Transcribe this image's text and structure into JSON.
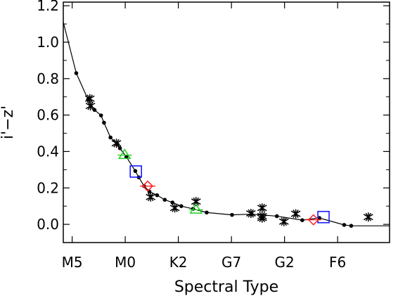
{
  "chart_data": {
    "type": "scatter",
    "xlabel": "Spectral Type",
    "ylabel": "i'−z'",
    "xlim": [
      -0.5,
      54.8
    ],
    "ylim": [
      -0.1,
      1.22
    ],
    "x_ticks": [
      {
        "value": 1,
        "label": "M5"
      },
      {
        "value": 10,
        "label": "M0"
      },
      {
        "value": 19,
        "label": "K2"
      },
      {
        "value": 28,
        "label": "G7"
      },
      {
        "value": 37,
        "label": "G2"
      },
      {
        "value": 46,
        "label": "F6"
      }
    ],
    "y_ticks": [
      0.0,
      0.2,
      0.4,
      0.6,
      0.8,
      1.0,
      1.2
    ],
    "y_tick_labels": [
      "0.0",
      "0.2",
      "0.4",
      "0.6",
      "0.8",
      "1.0",
      "1.2"
    ],
    "series": [
      {
        "marker": "line-dots",
        "color": "#000000",
        "points": [
          [
            -0.5,
            1.11
          ],
          [
            1.7,
            0.83
          ],
          [
            3.7,
            0.685
          ],
          [
            4.8,
            0.628
          ],
          [
            5.9,
            0.598
          ],
          [
            6.4,
            0.558
          ],
          [
            7.5,
            0.477
          ],
          [
            8.7,
            0.438
          ],
          [
            9.1,
            0.418
          ],
          [
            10.2,
            0.37
          ],
          [
            11.7,
            0.293
          ],
          [
            12.3,
            0.258
          ],
          [
            13.2,
            0.21
          ],
          [
            14.1,
            0.18
          ],
          [
            15.4,
            0.16
          ],
          [
            16.7,
            0.135
          ],
          [
            18.0,
            0.12
          ],
          [
            19.5,
            0.1
          ],
          [
            21.5,
            0.085
          ],
          [
            23.8,
            0.065
          ],
          [
            28.1,
            0.052
          ],
          [
            31.4,
            0.056
          ],
          [
            35.7,
            0.045
          ],
          [
            40.0,
            0.023
          ],
          [
            42.9,
            0.035
          ],
          [
            47.1,
            -0.003
          ],
          [
            48.3,
            -0.008
          ],
          [
            54.8,
            -0.008
          ]
        ]
      },
      {
        "marker": "asterisk",
        "color": "#000000",
        "points": [
          [
            4.0,
            0.69
          ],
          [
            4.1,
            0.65
          ],
          [
            8.5,
            0.445
          ],
          [
            14.3,
            0.15
          ],
          [
            18.4,
            0.09
          ],
          [
            22.0,
            0.125
          ],
          [
            31.3,
            0.06
          ],
          [
            33.2,
            0.09
          ],
          [
            33.2,
            0.045
          ],
          [
            33.2,
            0.035
          ],
          [
            36.9,
            0.015
          ],
          [
            38.9,
            0.058
          ],
          [
            51.2,
            0.04
          ]
        ]
      },
      {
        "marker": "triangle",
        "color": "#22cc22",
        "points": [
          [
            9.9,
            0.38
          ],
          [
            22.0,
            0.08
          ]
        ]
      },
      {
        "marker": "square",
        "color": "#1a1aff",
        "points": [
          [
            11.8,
            0.29
          ],
          [
            43.6,
            0.04
          ]
        ]
      },
      {
        "marker": "diamond",
        "color": "#ff2020",
        "points": [
          [
            13.8,
            0.21
          ],
          [
            41.9,
            0.025
          ]
        ]
      }
    ]
  }
}
